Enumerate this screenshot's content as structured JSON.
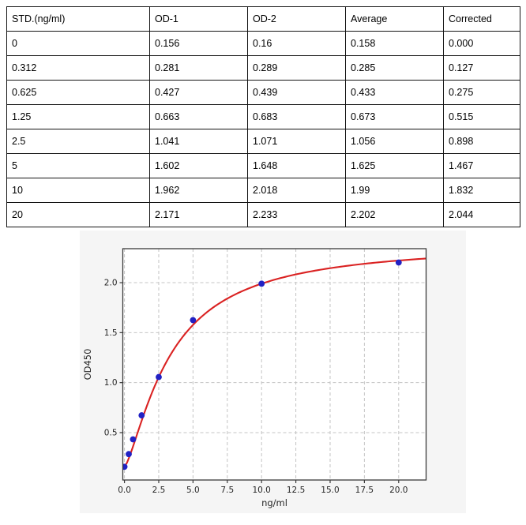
{
  "table": {
    "headers": [
      "STD.(ng/ml)",
      "OD-1",
      "OD-2",
      "Average",
      "Corrected"
    ],
    "rows": [
      [
        "0",
        "0.156",
        "0.16",
        "0.158",
        "0.000"
      ],
      [
        "0.312",
        "0.281",
        "0.289",
        "0.285",
        "0.127"
      ],
      [
        "0.625",
        "0.427",
        "0.439",
        "0.433",
        "0.275"
      ],
      [
        "1.25",
        "0.663",
        "0.683",
        "0.673",
        "0.515"
      ],
      [
        "2.5",
        "1.041",
        "1.071",
        "1.056",
        "0.898"
      ],
      [
        "5",
        "1.602",
        "1.648",
        "1.625",
        "1.467"
      ],
      [
        "10",
        "1.962",
        "2.018",
        "1.99",
        "1.832"
      ],
      [
        "20",
        "2.171",
        "2.233",
        "2.202",
        "2.044"
      ]
    ]
  },
  "chart_data": {
    "type": "scatter",
    "title": "",
    "xlabel": "ng/ml",
    "ylabel": "OD450",
    "x": [
      0,
      0.312,
      0.625,
      1.25,
      2.5,
      5,
      10,
      20
    ],
    "y": [
      0.158,
      0.285,
      0.433,
      0.673,
      1.056,
      1.625,
      1.99,
      2.202
    ],
    "series": [
      {
        "name": "standard-points",
        "type": "scatter",
        "x": [
          0,
          0.312,
          0.625,
          1.25,
          2.5,
          5,
          10,
          20
        ],
        "y": [
          0.158,
          0.285,
          0.433,
          0.673,
          1.056,
          1.625,
          1.99,
          2.202
        ]
      },
      {
        "name": "fitted-curve",
        "type": "line",
        "model": "4PL",
        "params": {
          "a": 0.158,
          "b": 1.3715,
          "c": 3.358,
          "d": 2.4
        },
        "x_range": [
          0,
          22
        ]
      }
    ],
    "xticks": [
      0.0,
      2.5,
      5.0,
      7.5,
      10.0,
      12.5,
      15.0,
      17.5,
      20.0
    ],
    "yticks": [
      0.5,
      1.0,
      1.5,
      2.0
    ],
    "xlim": [
      -0.12,
      22.0
    ],
    "ylim": [
      0.026,
      2.34
    ],
    "grid": true,
    "legend": "none",
    "colors": {
      "point": "#2121c4",
      "curve": "#da2222",
      "figure_bg": "#f5f5f5",
      "plot_bg": "#ffffff",
      "grid": "#c4c4c4",
      "spine": "#3a3a3a",
      "tick_text": "#262626"
    }
  }
}
